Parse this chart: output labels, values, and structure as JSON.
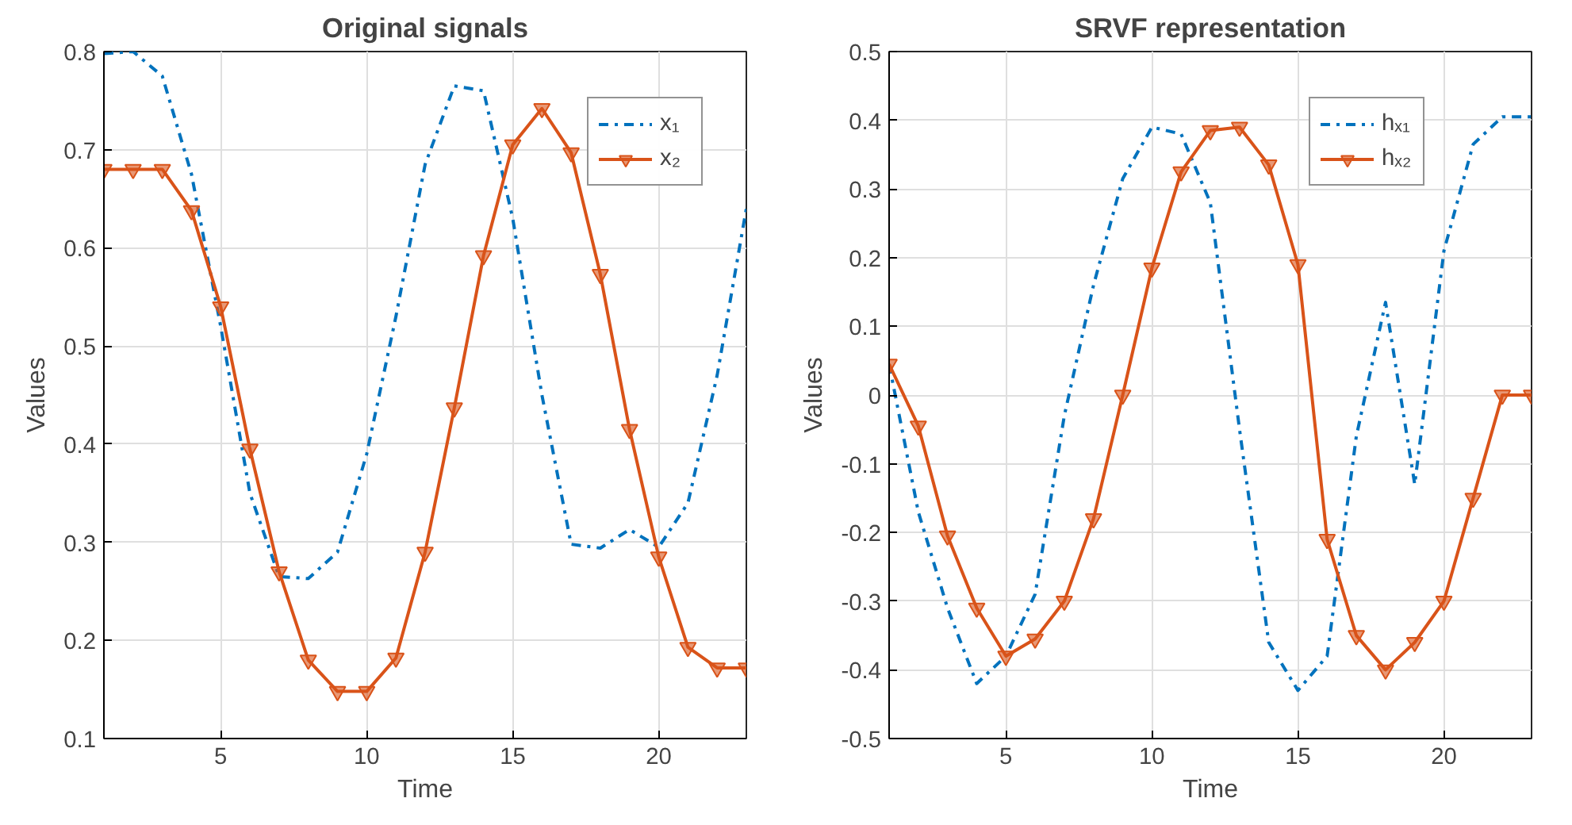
{
  "chart_data": [
    {
      "type": "line",
      "title": "Original signals",
      "xlabel": "Time",
      "ylabel": "Values",
      "x": [
        1,
        2,
        3,
        4,
        5,
        6,
        7,
        8,
        9,
        10,
        11,
        12,
        13,
        14,
        15,
        16,
        17,
        18,
        19,
        20,
        21,
        22,
        23
      ],
      "series": [
        {
          "name": "x₁",
          "color": "#0072bd",
          "line_style": "dashdot",
          "marker": "none",
          "values": [
            0.798,
            0.8,
            0.775,
            0.675,
            0.52,
            0.35,
            0.265,
            0.263,
            0.29,
            0.39,
            0.53,
            0.685,
            0.765,
            0.76,
            0.63,
            0.45,
            0.298,
            0.294,
            0.313,
            0.295,
            0.34,
            0.47,
            0.64
          ]
        },
        {
          "name": "x₂",
          "color": "#d95319",
          "line_style": "solid",
          "marker": "triangle_down",
          "values": [
            0.68,
            0.68,
            0.68,
            0.638,
            0.54,
            0.395,
            0.27,
            0.18,
            0.148,
            0.148,
            0.182,
            0.29,
            0.437,
            0.592,
            0.705,
            0.742,
            0.697,
            0.573,
            0.415,
            0.285,
            0.193,
            0.172,
            0.172
          ]
        }
      ],
      "xlim": [
        1,
        23
      ],
      "xticks": [
        5,
        10,
        15,
        20
      ],
      "ylim": [
        0.1,
        0.8
      ],
      "yticks": [
        0.1,
        0.2,
        0.3,
        0.4,
        0.5,
        0.6,
        0.7,
        0.8
      ],
      "grid": true,
      "legend": "top right"
    },
    {
      "type": "line",
      "title": "SRVF representation",
      "xlabel": "Time",
      "ylabel": "Values",
      "x": [
        1,
        2,
        3,
        4,
        5,
        6,
        7,
        8,
        9,
        10,
        11,
        12,
        13,
        14,
        15,
        16,
        17,
        18,
        19,
        20,
        21,
        22,
        23
      ],
      "series": [
        {
          "name": "hₓ₁",
          "color": "#0072bd",
          "line_style": "dashdot",
          "marker": "none",
          "values": [
            0.045,
            -0.17,
            -0.31,
            -0.42,
            -0.38,
            -0.29,
            -0.03,
            0.16,
            0.315,
            0.39,
            0.38,
            0.28,
            -0.05,
            -0.36,
            -0.43,
            -0.38,
            -0.06,
            0.135,
            -0.13,
            0.21,
            0.365,
            0.405,
            0.405
          ]
        },
        {
          "name": "hₓ₂",
          "color": "#d95319",
          "line_style": "solid",
          "marker": "triangle_down",
          "values": [
            0.045,
            -0.045,
            -0.205,
            -0.31,
            -0.38,
            -0.355,
            -0.3,
            -0.18,
            0.0,
            0.185,
            0.325,
            0.385,
            0.39,
            0.335,
            0.19,
            -0.21,
            -0.35,
            -0.4,
            -0.36,
            -0.3,
            -0.15,
            0.0,
            0.0
          ]
        }
      ],
      "xlim": [
        1,
        23
      ],
      "xticks": [
        5,
        10,
        15,
        20
      ],
      "ylim": [
        -0.5,
        0.5
      ],
      "yticks": [
        -0.5,
        -0.4,
        -0.3,
        -0.2,
        -0.1,
        0,
        0.1,
        0.2,
        0.3,
        0.4,
        0.5
      ],
      "grid": true,
      "legend": "top right"
    }
  ]
}
